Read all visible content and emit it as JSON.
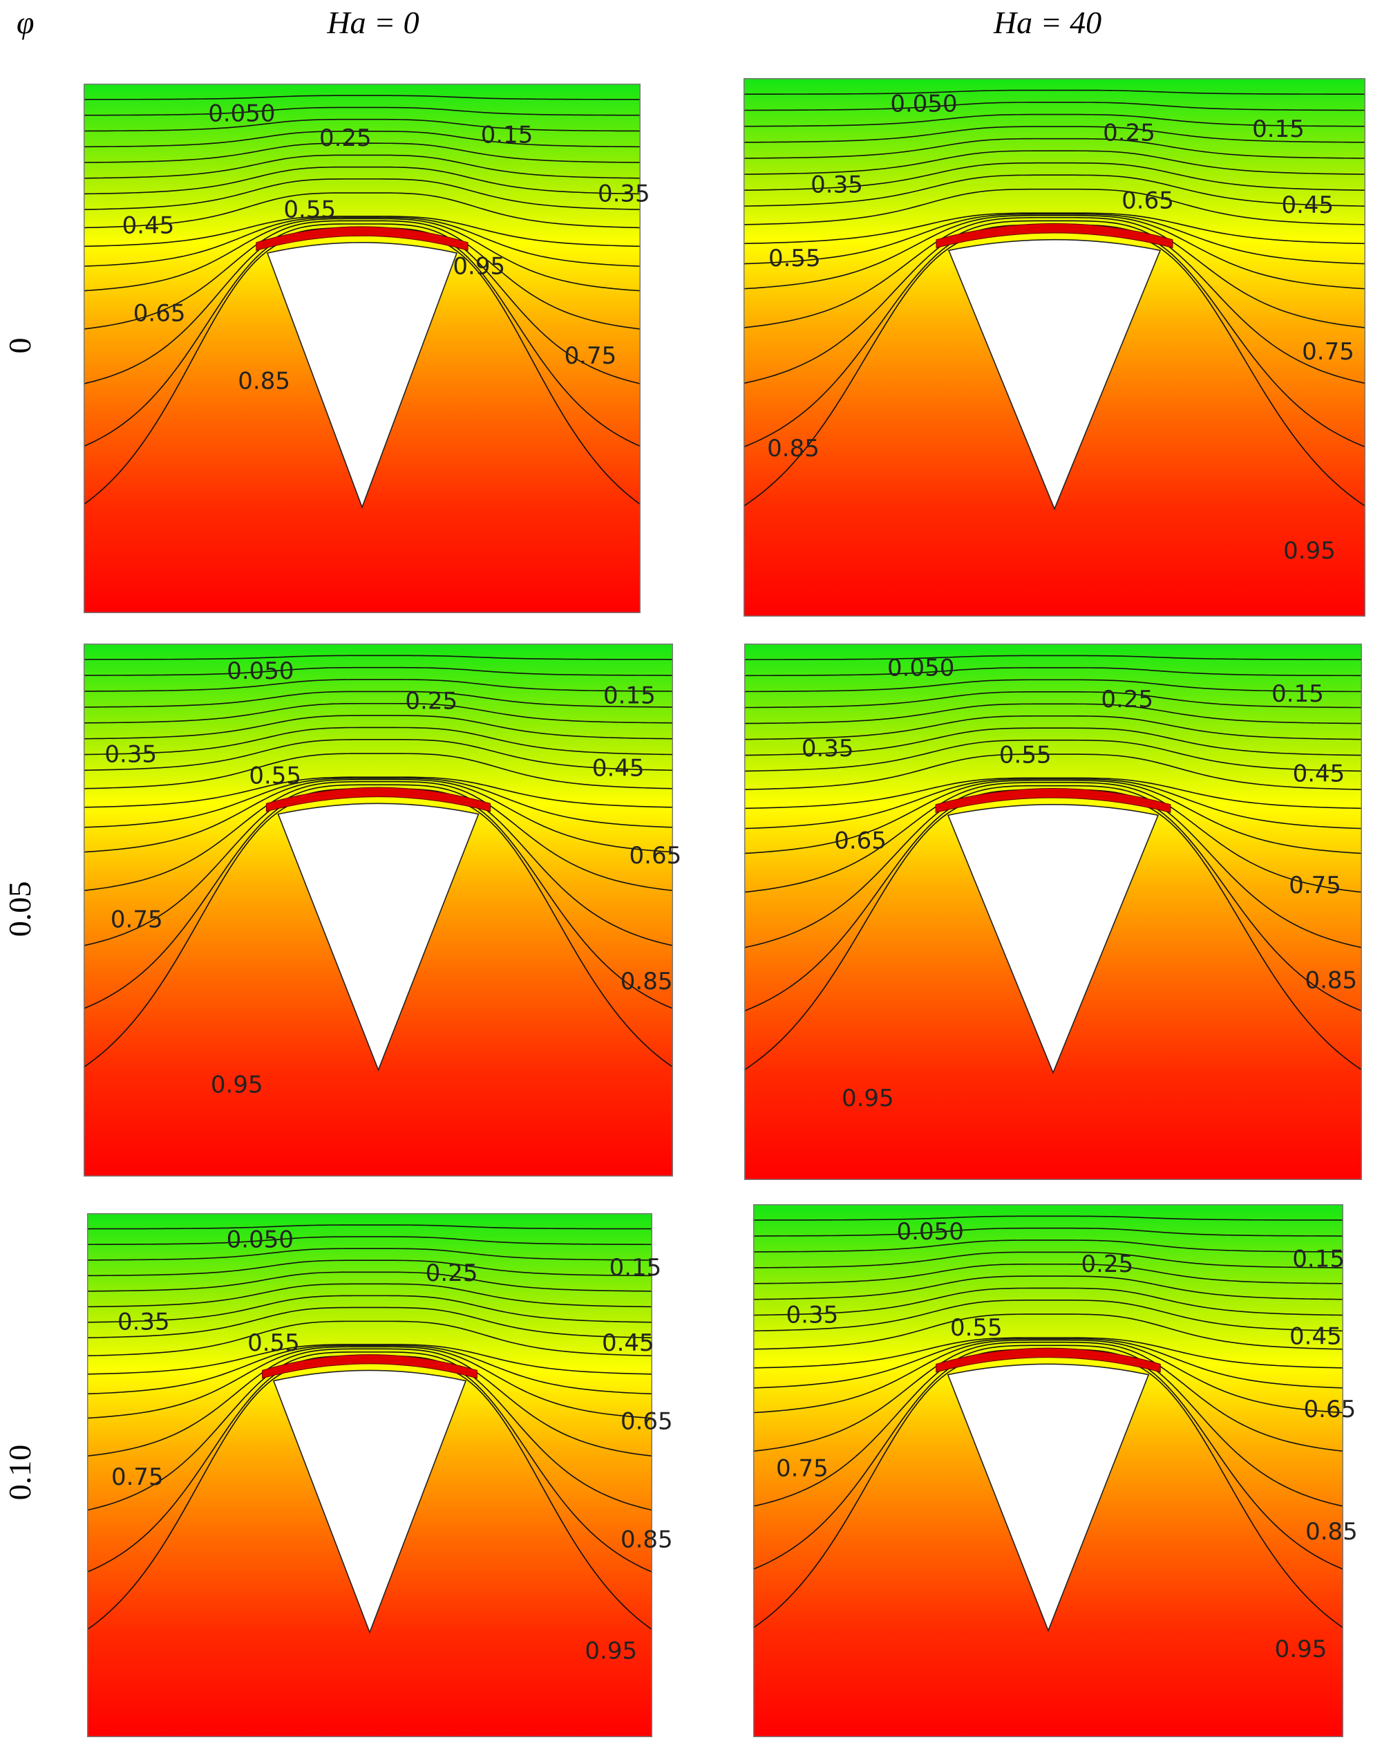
{
  "header": {
    "phi_label": "φ",
    "columns": [
      "Ha = 0",
      "Ha = 40"
    ]
  },
  "rows": [
    {
      "label": "0",
      "panels": [
        {
          "labels": [
            "0.050",
            "0.25",
            "0.15",
            "0.35",
            "0.45",
            "0.55",
            "0.95",
            "0.65",
            "0.75",
            "0.85"
          ]
        },
        {
          "labels": [
            "0.050",
            "0.25",
            "0.15",
            "0.35",
            "0.65",
            "0.45",
            "0.55",
            "0.75",
            "0.85",
            "0.95"
          ]
        }
      ]
    },
    {
      "label": "0.05",
      "panels": [
        {
          "labels": [
            "0.050",
            "0.25",
            "0.15",
            "0.35",
            "0.55",
            "0.45",
            "0.65",
            "0.75",
            "0.85",
            "0.95"
          ]
        },
        {
          "labels": [
            "0.050",
            "0.25",
            "0.15",
            "0.35",
            "0.55",
            "0.45",
            "0.65",
            "0.75",
            "0.85",
            "0.95"
          ]
        }
      ]
    },
    {
      "label": "0.10",
      "panels": [
        {
          "labels": [
            "0.050",
            "0.25",
            "0.15",
            "0.35",
            "0.55",
            "0.45",
            "0.65",
            "0.75",
            "0.85",
            "0.95"
          ]
        },
        {
          "labels": [
            "0.050",
            "0.25",
            "0.15",
            "0.35",
            "0.55",
            "0.45",
            "0.65",
            "0.75",
            "0.85",
            "0.95"
          ]
        }
      ]
    }
  ]
}
